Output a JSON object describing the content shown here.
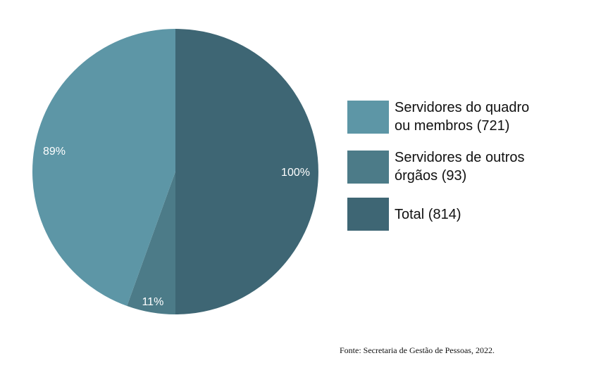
{
  "chart_data": {
    "type": "pie",
    "slices": [
      {
        "label": "Total (814)",
        "value": 50,
        "percent_label": "100%",
        "color": "#3e6674"
      },
      {
        "label": "Servidores de outros órgãos (93)",
        "value": 5.5,
        "percent_label": "11%",
        "color": "#4c7b88"
      },
      {
        "label": "Servidores do quadro ou membros (721)",
        "value": 44.5,
        "percent_label": "89%",
        "color": "#5d96a6"
      }
    ],
    "legend": [
      {
        "text": "Servidores do quadro ou membros (721)",
        "color": "#5d96a6"
      },
      {
        "text": "Servidores de outros órgãos (93)",
        "color": "#4c7b88"
      },
      {
        "text": "Total (814)",
        "color": "#3e6674"
      }
    ],
    "legend_position": "right"
  },
  "source": "Fonte: Secretaria de Gestão de Pessoas, 2022."
}
